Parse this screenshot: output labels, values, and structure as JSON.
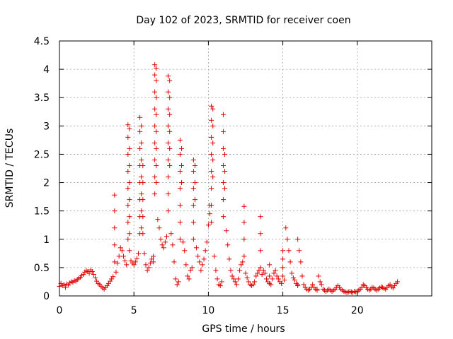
{
  "chart_data": {
    "type": "scatter",
    "title": "Day 102 of 2023, SRMTID for receiver coen",
    "xlabel": "GPS time / hours",
    "ylabel": "SRMTID / TECUs",
    "xlim": [
      0,
      25
    ],
    "ylim": [
      0,
      4.5
    ],
    "xticks": [
      0,
      5,
      10,
      15,
      20
    ],
    "xtick_labels": [
      "0",
      "5",
      "10",
      "15",
      "20"
    ],
    "yticks": [
      0,
      0.5,
      1,
      1.5,
      2,
      2.5,
      3,
      3.5,
      4,
      4.5
    ],
    "ytick_labels": [
      "0",
      "0.5",
      "1",
      "1.5",
      "2",
      "2.5",
      "3",
      "3.5",
      "4",
      "4.5"
    ],
    "grid": true,
    "marker": "+",
    "color": "#e00000",
    "series": [
      {
        "name": "SRMTID",
        "x": [
          0.0,
          0.1,
          0.2,
          0.3,
          0.4,
          0.5,
          0.6,
          0.7,
          0.8,
          0.9,
          1.0,
          1.1,
          1.2,
          1.3,
          1.4,
          1.5,
          1.6,
          1.7,
          1.8,
          1.9,
          2.0,
          2.1,
          2.2,
          2.3,
          2.4,
          2.5,
          2.6,
          2.7,
          2.8,
          2.9,
          3.0,
          3.1,
          3.2,
          3.3,
          3.4,
          3.5,
          3.6,
          3.7,
          3.7,
          3.7,
          3.7,
          3.7,
          3.8,
          3.9,
          4.0,
          4.1,
          4.2,
          4.3,
          4.4,
          4.5,
          4.6,
          4.6,
          4.6,
          4.6,
          4.6,
          4.6,
          4.6,
          4.6,
          4.7,
          4.7,
          4.7,
          4.7,
          4.7,
          4.7,
          4.7,
          4.7,
          4.8,
          4.9,
          5.0,
          5.1,
          5.2,
          5.3,
          5.4,
          5.4,
          5.4,
          5.4,
          5.4,
          5.4,
          5.4,
          5.4,
          5.5,
          5.5,
          5.5,
          5.5,
          5.5,
          5.5,
          5.5,
          5.6,
          5.6,
          5.6,
          5.6,
          5.6,
          5.7,
          5.8,
          5.9,
          6.0,
          6.1,
          6.2,
          6.3,
          6.3,
          6.4,
          6.4,
          6.4,
          6.4,
          6.4,
          6.4,
          6.4,
          6.4,
          6.4,
          6.5,
          6.5,
          6.5,
          6.5,
          6.5,
          6.5,
          6.5,
          6.5,
          6.6,
          6.7,
          6.8,
          6.9,
          7.0,
          7.1,
          7.2,
          7.3,
          7.3,
          7.3,
          7.3,
          7.3,
          7.3,
          7.3,
          7.3,
          7.3,
          7.4,
          7.4,
          7.4,
          7.4,
          7.4,
          7.4,
          7.5,
          7.6,
          7.7,
          7.8,
          7.9,
          8.0,
          8.1,
          8.1,
          8.1,
          8.1,
          8.1,
          8.1,
          8.1,
          8.2,
          8.2,
          8.2,
          8.3,
          8.4,
          8.5,
          8.6,
          8.7,
          8.8,
          8.9,
          9.0,
          9.0,
          9.0,
          9.0,
          9.0,
          9.0,
          9.1,
          9.1,
          9.1,
          9.2,
          9.3,
          9.4,
          9.5,
          9.6,
          9.7,
          9.8,
          9.9,
          10.0,
          10.1,
          10.1,
          10.2,
          10.2,
          10.2,
          10.2,
          10.2,
          10.2,
          10.2,
          10.2,
          10.3,
          10.3,
          10.3,
          10.3,
          10.3,
          10.4,
          10.5,
          10.6,
          10.7,
          10.8,
          10.9,
          11.0,
          11.0,
          11.0,
          11.0,
          11.0,
          11.0,
          11.0,
          11.1,
          11.1,
          11.1,
          11.2,
          11.3,
          11.4,
          11.5,
          11.6,
          11.7,
          11.8,
          11.9,
          12.0,
          12.1,
          12.2,
          12.3,
          12.4,
          12.4,
          12.4,
          12.4,
          12.5,
          12.6,
          12.7,
          12.8,
          12.9,
          13.0,
          13.1,
          13.2,
          13.3,
          13.4,
          13.5,
          13.5,
          13.5,
          13.5,
          13.6,
          13.7,
          13.8,
          13.9,
          14.0,
          14.1,
          14.1,
          14.1,
          14.2,
          14.3,
          14.4,
          14.5,
          14.6,
          14.7,
          14.8,
          14.9,
          15.0,
          15.0,
          15.0,
          15.0,
          15.1,
          15.2,
          15.3,
          15.4,
          15.5,
          15.6,
          15.7,
          15.8,
          15.9,
          16.0,
          16.0,
          16.0,
          16.1,
          16.2,
          16.3,
          16.4,
          16.5,
          16.6,
          16.7,
          16.8,
          16.9,
          17.0,
          17.1,
          17.2,
          17.3,
          17.3,
          17.4,
          17.5,
          17.6,
          17.7,
          17.8,
          17.9,
          18.0,
          18.1,
          18.2,
          18.3,
          18.4,
          18.5,
          18.6,
          18.7,
          18.8,
          18.9,
          19.0,
          19.1,
          19.2,
          19.3,
          19.4,
          19.5,
          19.6,
          19.7,
          19.8,
          19.9,
          20.0,
          20.1,
          20.2,
          20.3,
          20.4,
          20.5,
          20.6,
          20.7,
          20.8,
          20.9,
          21.0,
          21.1,
          21.2,
          21.3,
          21.4,
          21.5,
          21.6,
          21.7,
          21.8,
          21.9,
          22.0,
          22.1,
          22.2,
          22.3,
          22.4,
          22.5,
          22.6,
          22.7
        ],
        "y": [
          0.17,
          0.22,
          0.18,
          0.2,
          0.15,
          0.21,
          0.19,
          0.23,
          0.25,
          0.24,
          0.27,
          0.26,
          0.29,
          0.31,
          0.33,
          0.36,
          0.38,
          0.42,
          0.45,
          0.43,
          0.4,
          0.46,
          0.43,
          0.38,
          0.32,
          0.26,
          0.22,
          0.2,
          0.17,
          0.14,
          0.12,
          0.15,
          0.18,
          0.22,
          0.26,
          0.3,
          0.34,
          1.78,
          1.5,
          1.2,
          0.9,
          0.6,
          0.42,
          0.58,
          0.7,
          0.85,
          0.8,
          0.7,
          0.62,
          0.55,
          3.02,
          2.8,
          2.5,
          2.2,
          1.9,
          1.6,
          1.3,
          1.0,
          2.95,
          2.6,
          2.3,
          2.0,
          1.7,
          1.4,
          1.1,
          0.8,
          0.62,
          0.58,
          0.55,
          0.6,
          0.66,
          0.75,
          3.15,
          2.9,
          2.6,
          2.3,
          2.0,
          1.7,
          1.4,
          1.1,
          3.0,
          2.7,
          2.4,
          2.1,
          1.8,
          1.5,
          1.2,
          2.3,
          2.0,
          1.7,
          1.4,
          1.1,
          0.75,
          0.55,
          0.45,
          0.5,
          0.58,
          0.65,
          0.7,
          0.6,
          4.08,
          3.9,
          3.6,
          3.3,
          3.0,
          2.7,
          2.4,
          2.1,
          1.8,
          4.02,
          3.8,
          3.5,
          3.2,
          2.9,
          2.6,
          2.3,
          2.0,
          1.35,
          1.2,
          1.0,
          0.9,
          0.85,
          0.95,
          1.05,
          3.88,
          3.6,
          3.3,
          3.0,
          2.7,
          2.4,
          2.1,
          1.8,
          1.5,
          3.8,
          3.5,
          3.2,
          2.9,
          2.6,
          2.3,
          1.1,
          0.9,
          0.6,
          0.3,
          0.2,
          0.25,
          2.75,
          2.5,
          2.2,
          1.9,
          1.6,
          1.3,
          1.0,
          2.6,
          2.3,
          2.0,
          0.95,
          0.8,
          0.55,
          0.35,
          0.3,
          0.45,
          0.5,
          2.4,
          2.2,
          1.9,
          1.6,
          1.3,
          1.0,
          2.3,
          2.0,
          1.7,
          0.85,
          0.7,
          0.6,
          0.45,
          0.55,
          0.65,
          0.8,
          0.95,
          1.25,
          1.45,
          1.6,
          3.35,
          3.1,
          2.8,
          2.5,
          2.2,
          1.9,
          1.6,
          1.3,
          3.3,
          3.0,
          2.7,
          2.4,
          2.1,
          0.7,
          0.45,
          0.3,
          0.2,
          0.18,
          0.25,
          3.2,
          2.9,
          2.6,
          2.3,
          2.0,
          1.7,
          1.4,
          2.5,
          2.2,
          1.9,
          1.15,
          0.9,
          0.65,
          0.45,
          0.35,
          0.3,
          0.25,
          0.2,
          0.3,
          0.45,
          0.55,
          0.6,
          1.58,
          1.3,
          1.0,
          0.7,
          0.4,
          0.32,
          0.25,
          0.2,
          0.18,
          0.2,
          0.25,
          0.35,
          0.4,
          0.45,
          0.5,
          1.4,
          1.1,
          0.8,
          0.38,
          0.45,
          0.4,
          0.3,
          0.25,
          0.22,
          0.55,
          0.35,
          0.2,
          0.3,
          0.4,
          0.45,
          0.35,
          0.3,
          0.25,
          0.22,
          0.8,
          0.65,
          0.5,
          0.35,
          0.28,
          1.2,
          1.0,
          0.8,
          0.6,
          0.4,
          0.32,
          0.28,
          0.22,
          0.2,
          0.18,
          1.0,
          0.8,
          0.6,
          0.35,
          0.2,
          0.15,
          0.12,
          0.1,
          0.12,
          0.15,
          0.2,
          0.15,
          0.12,
          0.1,
          0.12,
          0.35,
          0.25,
          0.2,
          0.12,
          0.1,
          0.08,
          0.1,
          0.12,
          0.1,
          0.08,
          0.1,
          0.12,
          0.15,
          0.18,
          0.15,
          0.12,
          0.1,
          0.08,
          0.07,
          0.06,
          0.07,
          0.08,
          0.07,
          0.06,
          0.08,
          0.07,
          0.08,
          0.1,
          0.12,
          0.15,
          0.2,
          0.18,
          0.15,
          0.12,
          0.1,
          0.12,
          0.15,
          0.14,
          0.12,
          0.1,
          0.12,
          0.14,
          0.16,
          0.15,
          0.13,
          0.12,
          0.15,
          0.18,
          0.2,
          0.16,
          0.14,
          0.18,
          0.22,
          0.25
        ]
      }
    ]
  }
}
